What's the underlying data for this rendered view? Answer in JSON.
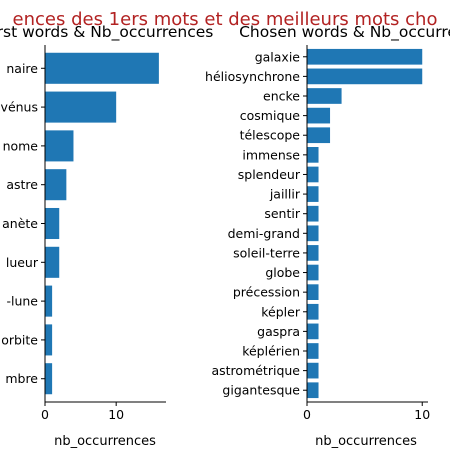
{
  "suptitle": "ences des 1ers mots et des meilleurs mots cho",
  "colors": {
    "bar": "#1f77b4",
    "suptitle": "#b22222"
  },
  "chart_data": [
    {
      "type": "bar",
      "orientation": "horizontal",
      "title": "rst words & Nb_occurrences",
      "xlabel": "nb_occurrences",
      "ylabel": "",
      "categories": [
        "naire",
        "vénus",
        "nome",
        "astre",
        "anète",
        "lueur",
        "-lune",
        "orbite",
        "mbre"
      ],
      "values": [
        16,
        10,
        4,
        3,
        2,
        2,
        1,
        1,
        1
      ],
      "xlim": [
        0,
        17
      ],
      "xticks": [
        0,
        10
      ]
    },
    {
      "type": "bar",
      "orientation": "horizontal",
      "title": "Chosen words & Nb_occurrences",
      "xlabel": "nb_occurrences",
      "ylabel": "",
      "categories": [
        "galaxie",
        "héliosynchrone",
        "encke",
        "cosmique",
        "télescope",
        "immense",
        "splendeur",
        "jaillir",
        "sentir",
        "demi-grand",
        "soleil-terre",
        "globe",
        "précession",
        "képler",
        "gaspra",
        "képlérien",
        "astrométrique",
        "gigantesque"
      ],
      "values": [
        10,
        10,
        3,
        2,
        2,
        1,
        1,
        1,
        1,
        1,
        1,
        1,
        1,
        1,
        1,
        1,
        1,
        1
      ],
      "xlim": [
        0,
        10.5
      ],
      "xticks": [
        0,
        10
      ]
    }
  ]
}
